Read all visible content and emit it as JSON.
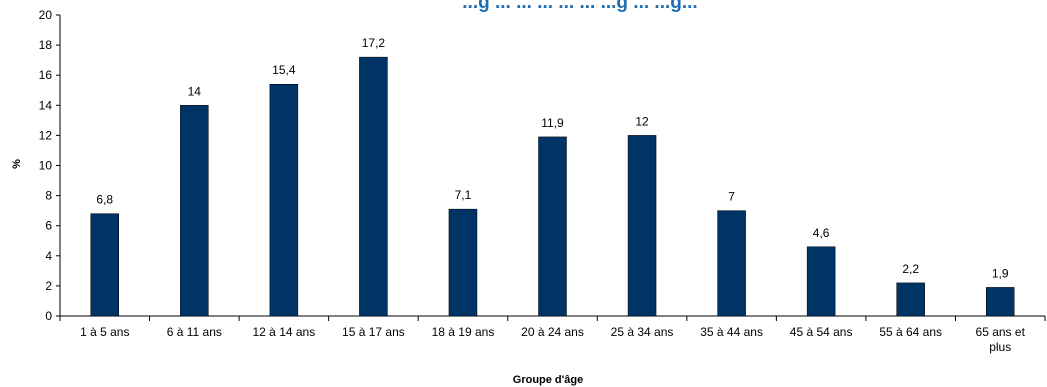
{
  "chart_data": {
    "type": "bar",
    "title": "...g ... ... ... ... ... ...g ... ...g...",
    "xlabel": "Groupe d'âge",
    "ylabel": "%",
    "ylim": [
      0,
      20
    ],
    "yticks": [
      "0",
      "2",
      "4",
      "6",
      "8",
      "10",
      "12",
      "14",
      "16",
      "18",
      "20"
    ],
    "categories": [
      "1 à 5 ans",
      "6 à 11 ans",
      "12 à 14 ans",
      "15 à 17 ans",
      "18 à 19 ans",
      "20 à 24 ans",
      "25 à 34 ans",
      "35 à 44 ans",
      "45 à 54 ans",
      "55 à 64 ans",
      [
        "65 ans et",
        "plus"
      ]
    ],
    "values": [
      6.8,
      14,
      15.4,
      17.2,
      7.1,
      11.9,
      12,
      7,
      4.6,
      2.2,
      1.9
    ],
    "value_labels": [
      "6,8",
      "14",
      "15,4",
      "17,2",
      "7,1",
      "11,9",
      "12",
      "7",
      "4,6",
      "2,2",
      "1,9"
    ],
    "grid": false,
    "legend": "none",
    "colors": {
      "bar": "#003366",
      "title": "#1f6db3",
      "axis": "#000000"
    }
  }
}
